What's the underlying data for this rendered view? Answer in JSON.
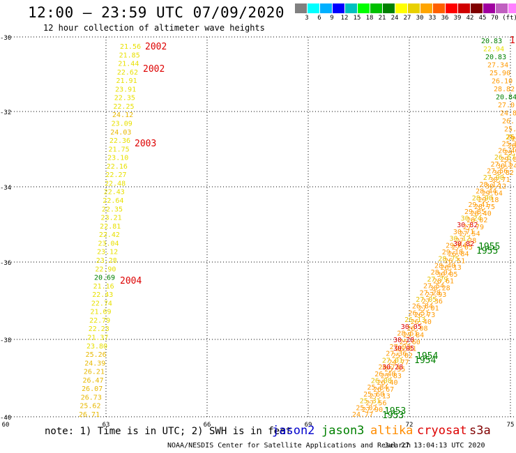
{
  "title": "12:00 – 23:59 UTC 07/09/2020",
  "subtitle": "12 hour collection of altimeter wave heights",
  "legend": {
    "colors": [
      "#808080",
      "#00ffff",
      "#00b0ff",
      "#0000ff",
      "#00c0c0",
      "#00ff00",
      "#00c000",
      "#008000",
      "#ffff00",
      "#e8d000",
      "#ffa500",
      "#ff6000",
      "#ff0000",
      "#d00000",
      "#800000",
      "#a000a0",
      "#c060c0",
      "#ff80ff",
      "#000000"
    ],
    "labels": [
      "3",
      "6",
      "9",
      "12",
      "15",
      "18",
      "21",
      "24",
      "27",
      "30",
      "33",
      "36",
      "39",
      "42",
      "45",
      "70 (ft)"
    ]
  },
  "axes": {
    "lat_labels": [
      "-30",
      "-32",
      "-34",
      "-36",
      "-38",
      "-40"
    ],
    "lon_labels": [
      "60",
      "63",
      "66",
      "69",
      "72",
      "75"
    ]
  },
  "note": "note: 1) Time is in UTC; 2) SWH is in feet",
  "satellites": [
    {
      "name": "jason2",
      "color": "#0000cc"
    },
    {
      "name": "jason3",
      "color": "#008000"
    },
    {
      "name": "altika",
      "color": "#ff8c00"
    },
    {
      "name": "cryosat",
      "color": "#dd0000"
    },
    {
      "name": "s3a",
      "color": "#800000"
    }
  ],
  "credit": "NOAA/NESDIS Center for Satellite Applications and Research",
  "timestamp": "Jul 27 13:04:13 UTC 2020",
  "track1_values": [
    "21.56",
    "21.85",
    "21.44",
    "22.62",
    "21.91",
    "23.91",
    "22.35",
    "22.25",
    "24.12",
    "23.09",
    "24.03",
    "22.36",
    "21.75",
    "23.10",
    "22.16",
    "22.27",
    "22.48",
    "22.43",
    "22.64",
    "22.35",
    "23.21",
    "22.81",
    "22.42",
    "23.04",
    "23.12",
    "23.28",
    "22.90",
    "20.69",
    "21.16",
    "22.43",
    "22.74",
    "21.69",
    "22.79",
    "22.23",
    "21.37",
    "23.80",
    "25.26",
    "24.39",
    "26.21",
    "26.47",
    "26.07",
    "26.73",
    "25.62",
    "26.71"
  ],
  "track1_green_value": "20.69",
  "track1_times": [
    "2002",
    "2002",
    "2003",
    "2004"
  ],
  "track2_values_top": [
    "20.83",
    "22.94",
    "20.83",
    "27.34",
    "25.90",
    "26.10",
    "28.82",
    "20.84",
    "27.0",
    "24.8",
    "26.",
    "25.",
    "26."
  ],
  "track2_values_main": [
    "25.35",
    "25.83",
    "26.40",
    "26.67",
    "27.13",
    "27.56",
    "27.90",
    "28.12",
    "28.44",
    "28.90",
    "29.41",
    "29.85",
    "30.24",
    "30.82",
    "30.71",
    "30.12",
    "29.64",
    "29.18",
    "28.75",
    "28.40",
    "28.02",
    "27.79",
    "27.54",
    "27.28",
    "27.05",
    "26.84",
    "26.51",
    "26.13",
    "30.05",
    "28.61",
    "30.28",
    "27.93",
    "27.36",
    "27.01",
    "26.73",
    "26.40",
    "26.08",
    "25.84",
    "25.60",
    "25.31",
    "25.02",
    "24.77"
  ],
  "track2_red_values": [
    "30.82",
    "30.05",
    "30.28"
  ],
  "track2_times": [
    "1955",
    "1955",
    "1954",
    "1954",
    "1953",
    "1953",
    "1"
  ]
}
